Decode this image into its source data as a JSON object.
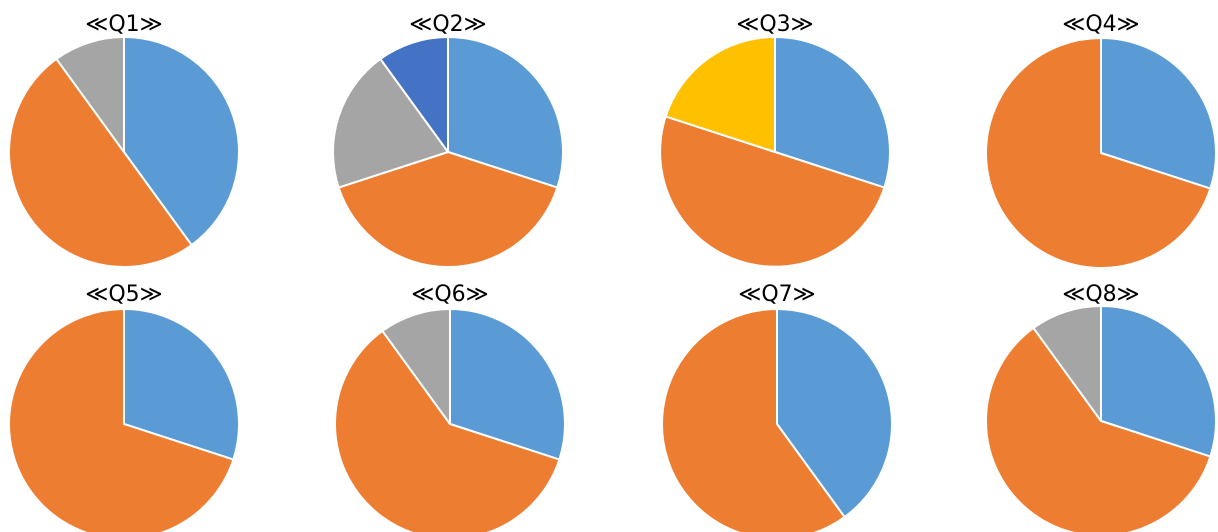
{
  "colors": {
    "blue": "#5B9BD5",
    "orange": "#ED7D31",
    "gray": "#A5A5A5",
    "yellow": "#FFC000",
    "darkblue": "#4472C4",
    "slice_border": "#FFFFFF"
  },
  "chart_data": [
    {
      "type": "pie",
      "title": "≪Q1≫",
      "values": [
        40,
        50,
        10
      ],
      "colors": [
        "blue",
        "orange",
        "gray"
      ]
    },
    {
      "type": "pie",
      "title": "≪Q2≫",
      "values": [
        30,
        40,
        20,
        10
      ],
      "colors": [
        "blue",
        "orange",
        "gray",
        "darkblue"
      ]
    },
    {
      "type": "pie",
      "title": "≪Q3≫",
      "values": [
        30,
        50,
        20
      ],
      "colors": [
        "blue",
        "orange",
        "yellow"
      ]
    },
    {
      "type": "pie",
      "title": "≪Q4≫",
      "values": [
        30,
        70
      ],
      "colors": [
        "blue",
        "orange"
      ]
    },
    {
      "type": "pie",
      "title": "≪Q5≫",
      "values": [
        30,
        70
      ],
      "colors": [
        "blue",
        "orange"
      ]
    },
    {
      "type": "pie",
      "title": "≪Q6≫",
      "values": [
        30,
        60,
        10
      ],
      "colors": [
        "blue",
        "orange",
        "gray"
      ]
    },
    {
      "type": "pie",
      "title": "≪Q7≫",
      "values": [
        40,
        60
      ],
      "colors": [
        "blue",
        "orange"
      ]
    },
    {
      "type": "pie",
      "title": "≪Q8≫",
      "values": [
        30,
        60,
        10
      ],
      "colors": [
        "blue",
        "orange",
        "gray"
      ]
    }
  ]
}
